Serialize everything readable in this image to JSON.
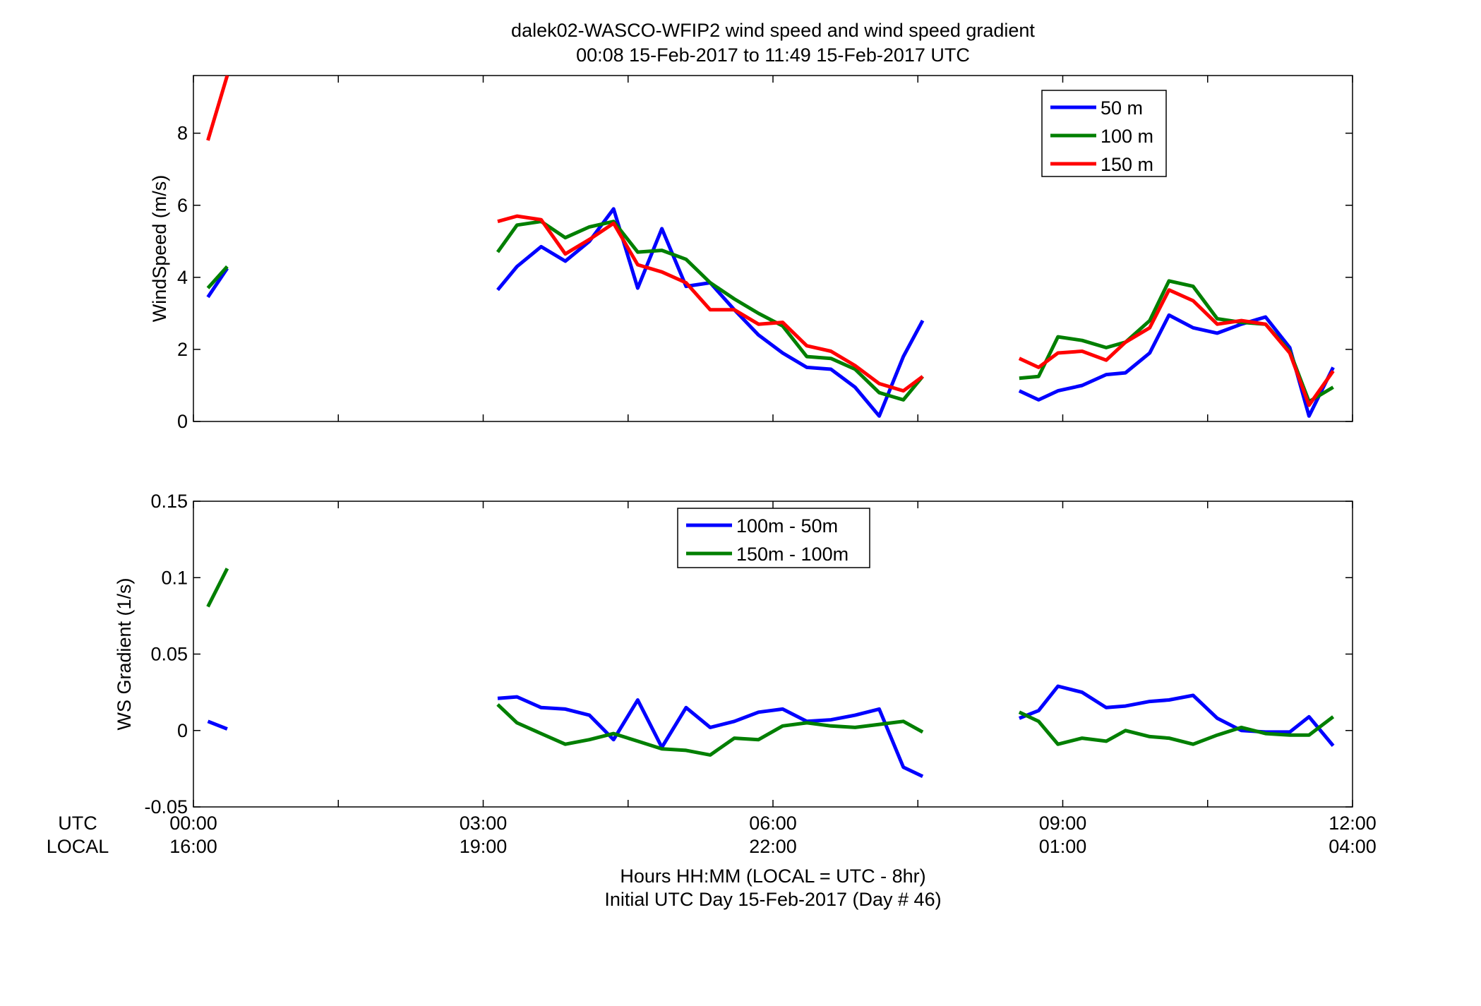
{
  "figure": {
    "title_line1": "dalek02-WASCO-WFIP2  wind speed and wind speed gradient",
    "title_line2": "00:08 15-Feb-2017 to 11:49 15-Feb-2017  UTC",
    "xlabel_line1": "Hours HH:MM  (LOCAL = UTC - 8hr)",
    "xlabel_line2": "Initial UTC Day 15-Feb-2017 (Day # 46)",
    "row_label_utc": "UTC",
    "row_label_local": "LOCAL",
    "utc_ticks": [
      "00:00",
      "03:00",
      "06:00",
      "09:00",
      "12:00"
    ],
    "local_ticks": [
      "16:00",
      "19:00",
      "22:00",
      "01:00",
      "04:00"
    ]
  },
  "chart_data": [
    {
      "type": "line",
      "ylabel": "WindSpeed (m/s)",
      "xlim": [
        0,
        12
      ],
      "ylim": [
        0,
        9.6
      ],
      "yticks": [
        0,
        2,
        4,
        6,
        8
      ],
      "ytick_labels": [
        "0",
        "2",
        "4",
        "6",
        "8"
      ],
      "legend_position": "top-right",
      "x": [
        0.15,
        0.35,
        2.95,
        3.15,
        3.35,
        3.6,
        3.85,
        4.1,
        4.35,
        4.6,
        4.85,
        5.1,
        5.35,
        5.6,
        5.85,
        6.1,
        6.35,
        6.6,
        6.85,
        7.1,
        7.35,
        7.55,
        8.35,
        8.55,
        8.75,
        8.95,
        9.2,
        9.45,
        9.65,
        9.9,
        10.1,
        10.35,
        10.6,
        10.85,
        11.1,
        11.35,
        11.55,
        11.8
      ],
      "series": [
        {
          "name": "50 m",
          "color": "#0000ff",
          "values": [
            3.45,
            4.25,
            null,
            3.65,
            4.3,
            4.85,
            4.45,
            5.0,
            5.9,
            3.7,
            5.35,
            3.75,
            3.85,
            3.1,
            2.4,
            1.9,
            1.5,
            1.45,
            0.95,
            0.15,
            1.8,
            2.8,
            null,
            0.85,
            0.6,
            0.85,
            1.0,
            1.3,
            1.35,
            1.9,
            2.95,
            2.6,
            2.45,
            2.7,
            2.9,
            2.05,
            0.15,
            1.5
          ]
        },
        {
          "name": "100 m",
          "color": "#007f00",
          "values": [
            3.7,
            4.3,
            null,
            4.7,
            5.45,
            5.55,
            5.1,
            5.4,
            5.55,
            4.7,
            4.75,
            4.5,
            3.85,
            3.4,
            3.0,
            2.65,
            1.8,
            1.75,
            1.45,
            0.8,
            0.6,
            1.25,
            null,
            1.2,
            1.25,
            2.35,
            2.25,
            2.05,
            2.2,
            2.8,
            3.9,
            3.75,
            2.85,
            2.75,
            2.7,
            1.95,
            0.55,
            0.95
          ]
        },
        {
          "name": "150 m",
          "color": "#ff0000",
          "values": [
            7.8,
            9.6,
            null,
            5.55,
            5.7,
            5.6,
            4.65,
            5.05,
            5.5,
            4.35,
            4.15,
            3.85,
            3.1,
            3.1,
            2.7,
            2.75,
            2.1,
            1.95,
            1.55,
            1.05,
            0.85,
            1.25,
            null,
            1.75,
            1.5,
            1.9,
            1.95,
            1.7,
            2.2,
            2.6,
            3.65,
            3.35,
            2.7,
            2.8,
            2.7,
            1.9,
            0.45,
            1.4
          ]
        }
      ]
    },
    {
      "type": "line",
      "ylabel": "WS Gradient (1/s)",
      "xlim": [
        0,
        12
      ],
      "ylim": [
        -0.05,
        0.15
      ],
      "yticks": [
        -0.05,
        0,
        0.05,
        0.1,
        0.15
      ],
      "ytick_labels": [
        "-0.05",
        "0",
        "0.05",
        "0.1",
        "0.15"
      ],
      "legend_position": "top-center",
      "x": [
        0.15,
        0.35,
        2.95,
        3.15,
        3.35,
        3.6,
        3.85,
        4.1,
        4.35,
        4.6,
        4.85,
        5.1,
        5.35,
        5.6,
        5.85,
        6.1,
        6.35,
        6.6,
        6.85,
        7.1,
        7.35,
        7.55,
        8.35,
        8.55,
        8.75,
        8.95,
        9.2,
        9.45,
        9.65,
        9.9,
        10.1,
        10.35,
        10.6,
        10.85,
        11.1,
        11.35,
        11.55,
        11.8
      ],
      "series": [
        {
          "name": "100m - 50m",
          "color": "#0000ff",
          "values": [
            0.006,
            0.001,
            null,
            0.021,
            0.022,
            0.015,
            0.014,
            0.01,
            -0.006,
            0.02,
            -0.011,
            0.015,
            0.002,
            0.006,
            0.012,
            0.014,
            0.006,
            0.007,
            0.01,
            0.014,
            -0.024,
            -0.03,
            null,
            0.008,
            0.013,
            0.029,
            0.025,
            0.015,
            0.016,
            0.019,
            0.02,
            0.023,
            0.008,
            0.0,
            -0.001,
            -0.001,
            0.009,
            -0.01
          ]
        },
        {
          "name": "150m - 100m",
          "color": "#007f00",
          "values": [
            0.081,
            0.106,
            null,
            0.017,
            0.005,
            -0.002,
            -0.009,
            -0.006,
            -0.002,
            -0.007,
            -0.012,
            -0.013,
            -0.016,
            -0.005,
            -0.006,
            0.003,
            0.005,
            0.003,
            0.002,
            0.004,
            0.006,
            -0.001,
            null,
            0.012,
            0.006,
            -0.009,
            -0.005,
            -0.007,
            0.0,
            -0.004,
            -0.005,
            -0.009,
            -0.003,
            0.002,
            -0.002,
            -0.003,
            -0.003,
            0.009
          ]
        }
      ]
    }
  ]
}
